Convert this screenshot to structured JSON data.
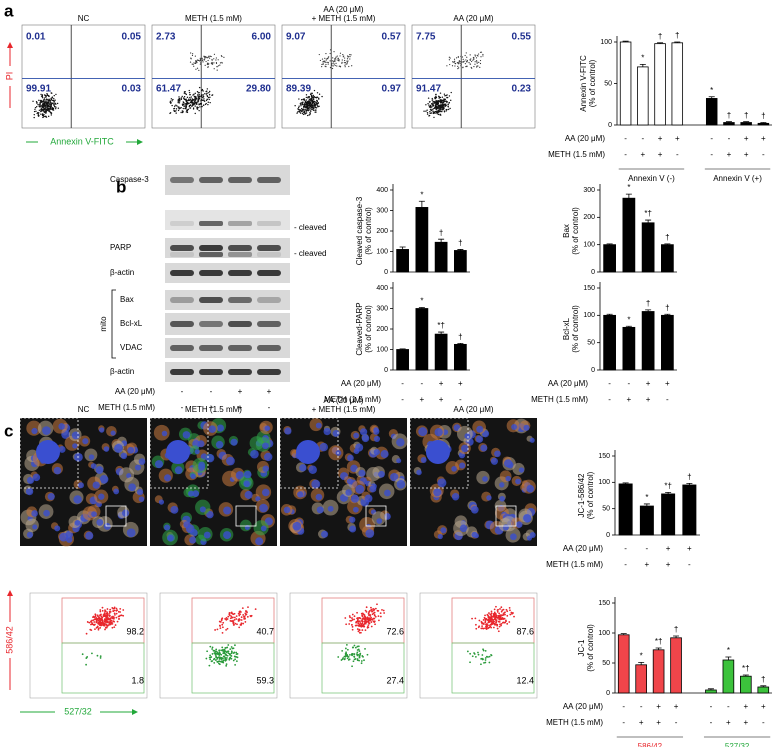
{
  "panel_labels": [
    "a",
    "b",
    "c"
  ],
  "flow_a": {
    "titles": [
      [
        "NC"
      ],
      [
        "METH (1.5 mM)"
      ],
      [
        "AA (20 μM)",
        "+ METH (1.5 mM)"
      ],
      [
        "AA (20 μM)"
      ]
    ],
    "quadrants": [
      [
        "0.01",
        "0.05",
        "99.91",
        "0.03"
      ],
      [
        "2.73",
        "6.00",
        "61.47",
        "29.80"
      ],
      [
        "9.07",
        "0.57",
        "89.39",
        "0.97"
      ],
      [
        "7.75",
        "0.55",
        "91.47",
        "0.23"
      ]
    ],
    "y_label": "PI",
    "x_label": "Annexin V-FITC"
  },
  "blots": {
    "rows": [
      "Caspase-3",
      "PARP",
      "β-actin",
      "Bax",
      "Bcl-xL",
      "VDAC",
      "β-actin"
    ],
    "notes": [
      "- cleaved",
      "- cleaved"
    ],
    "group": "mito",
    "conditions": [
      {
        "label": "AA (20 μM)",
        "signs": [
          "-",
          "-",
          "+",
          "+"
        ]
      },
      {
        "label": "METH (1.5 mM)",
        "signs": [
          "-",
          "+",
          "+",
          "-"
        ]
      }
    ]
  },
  "images_c": {
    "titles": [
      [
        "NC"
      ],
      [
        "METH (1.5 mM)"
      ],
      [
        "AA (20 μM)",
        "+ METH (1.5 mM)"
      ],
      [
        "AA (20 μM)"
      ]
    ]
  },
  "flow_c": {
    "upper": [
      "98.2",
      "40.7",
      "72.6",
      "87.6"
    ],
    "lower": [
      "1.8",
      "59.3",
      "27.4",
      "12.4"
    ],
    "y_label": "586/42",
    "x_label": "527/32"
  },
  "chart_data": [
    {
      "type": "bar",
      "ylabel": [
        "Annexin V-FITC",
        "(% of control)"
      ],
      "values": [
        100,
        70,
        98,
        99,
        32,
        3,
        3,
        2
      ],
      "errors": [
        1,
        3,
        1,
        1,
        2,
        1,
        1,
        1
      ],
      "colors": [
        "#ffffff",
        "#ffffff",
        "#ffffff",
        "#ffffff",
        "#000000",
        "#000000",
        "#000000",
        "#000000"
      ],
      "markers": [
        null,
        "*",
        "†",
        "†",
        "*",
        "†",
        "†",
        "†"
      ],
      "ylim": [
        0,
        100
      ],
      "yticks": [
        0,
        50,
        100
      ],
      "conditions": [
        {
          "label": "AA (20 μM)",
          "signs": [
            "-",
            "-",
            "+",
            "+",
            "-",
            "-",
            "+",
            "+"
          ]
        },
        {
          "label": "METH (1.5 mM)",
          "signs": [
            "-",
            "+",
            "+",
            "-",
            "-",
            "+",
            "+",
            "-"
          ]
        }
      ],
      "groups": [
        {
          "label": "Annexin V (-)",
          "color": "#000000"
        },
        {
          "label": "Annexin V (+)",
          "color": "#000000"
        }
      ]
    },
    {
      "type": "bar",
      "ylabel": [
        "Cleaved caspase-3",
        "(% of control)"
      ],
      "values": [
        110,
        315,
        145,
        105
      ],
      "errors": [
        12,
        30,
        15,
        5
      ],
      "color": "#000000",
      "markers": [
        null,
        "*",
        "†",
        "†"
      ],
      "ylim": [
        0,
        400
      ],
      "yticks": [
        0,
        100,
        200,
        300,
        400
      ]
    },
    {
      "type": "bar",
      "ylabel": [
        "Bax",
        "(% of control)"
      ],
      "values": [
        100,
        270,
        180,
        100
      ],
      "errors": [
        3,
        15,
        10,
        3
      ],
      "color": "#000000",
      "markers": [
        null,
        "*",
        "*†",
        "†"
      ],
      "ylim": [
        0,
        300
      ],
      "yticks": [
        0,
        100,
        200,
        300
      ]
    },
    {
      "type": "bar",
      "ylabel": [
        "Cleaved-PARP",
        "(% of control)"
      ],
      "values": [
        100,
        300,
        175,
        125
      ],
      "errors": [
        3,
        5,
        10,
        5
      ],
      "color": "#000000",
      "markers": [
        null,
        "*",
        "*†",
        "†"
      ],
      "ylim": [
        0,
        400
      ],
      "yticks": [
        0,
        100,
        200,
        300,
        400
      ],
      "conditions": [
        {
          "label": "AA (20 μM)",
          "signs": [
            "-",
            "-",
            "+",
            "+"
          ]
        },
        {
          "label": "METH (1.5 mM)",
          "signs": [
            "-",
            "+",
            "+",
            "-"
          ]
        }
      ]
    },
    {
      "type": "bar",
      "ylabel": [
        "Bcl-xL",
        "(% of control)"
      ],
      "values": [
        100,
        78,
        107,
        100
      ],
      "errors": [
        2,
        2,
        3,
        2
      ],
      "color": "#000000",
      "markers": [
        null,
        "*",
        "†",
        "†"
      ],
      "ylim": [
        0,
        150
      ],
      "yticks": [
        0,
        50,
        100,
        150
      ],
      "conditions": [
        {
          "label": "AA (20 μM)",
          "signs": [
            "-",
            "-",
            "+",
            "+"
          ]
        },
        {
          "label": "METH (1.5 mM)",
          "signs": [
            "-",
            "+",
            "+",
            "-"
          ]
        }
      ]
    },
    {
      "type": "bar",
      "ylabel": [
        "JC-1-586/42",
        "(% of control)"
      ],
      "values": [
        97,
        55,
        78,
        95
      ],
      "errors": [
        2,
        4,
        3,
        3
      ],
      "color": "#000000",
      "markers": [
        null,
        "*",
        "*†",
        "†"
      ],
      "ylim": [
        0,
        150
      ],
      "yticks": [
        0,
        50,
        100,
        150
      ],
      "conditions": [
        {
          "label": "AA (20 μM)",
          "signs": [
            "-",
            "-",
            "+",
            "+"
          ]
        },
        {
          "label": "METH (1.5 mM)",
          "signs": [
            "-",
            "+",
            "+",
            "-"
          ]
        }
      ]
    },
    {
      "type": "bar",
      "ylabel": [
        "JC-1",
        "(% of control)"
      ],
      "values": [
        97,
        47,
        72,
        92,
        5,
        55,
        28,
        10
      ],
      "errors": [
        2,
        4,
        3,
        3,
        2,
        5,
        2,
        2
      ],
      "colors": [
        "#f0454a",
        "#f0454a",
        "#f0454a",
        "#f0454a",
        "#3cc23c",
        "#3cc23c",
        "#3cc23c",
        "#3cc23c"
      ],
      "markers": [
        null,
        "*",
        "*†",
        "†",
        null,
        "*",
        "*†",
        "†"
      ],
      "ylim": [
        0,
        150
      ],
      "yticks": [
        0,
        50,
        100,
        150
      ],
      "conditions": [
        {
          "label": "AA (20 μM)",
          "signs": [
            "-",
            "-",
            "+",
            "+",
            "-",
            "-",
            "+",
            "+"
          ]
        },
        {
          "label": "METH (1.5 mM)",
          "signs": [
            "-",
            "+",
            "+",
            "-",
            "-",
            "+",
            "+",
            "-"
          ]
        }
      ],
      "groups": [
        {
          "label": "586/42",
          "color": "#e8262c"
        },
        {
          "label": "527/32",
          "color": "#22a83a"
        }
      ]
    }
  ]
}
